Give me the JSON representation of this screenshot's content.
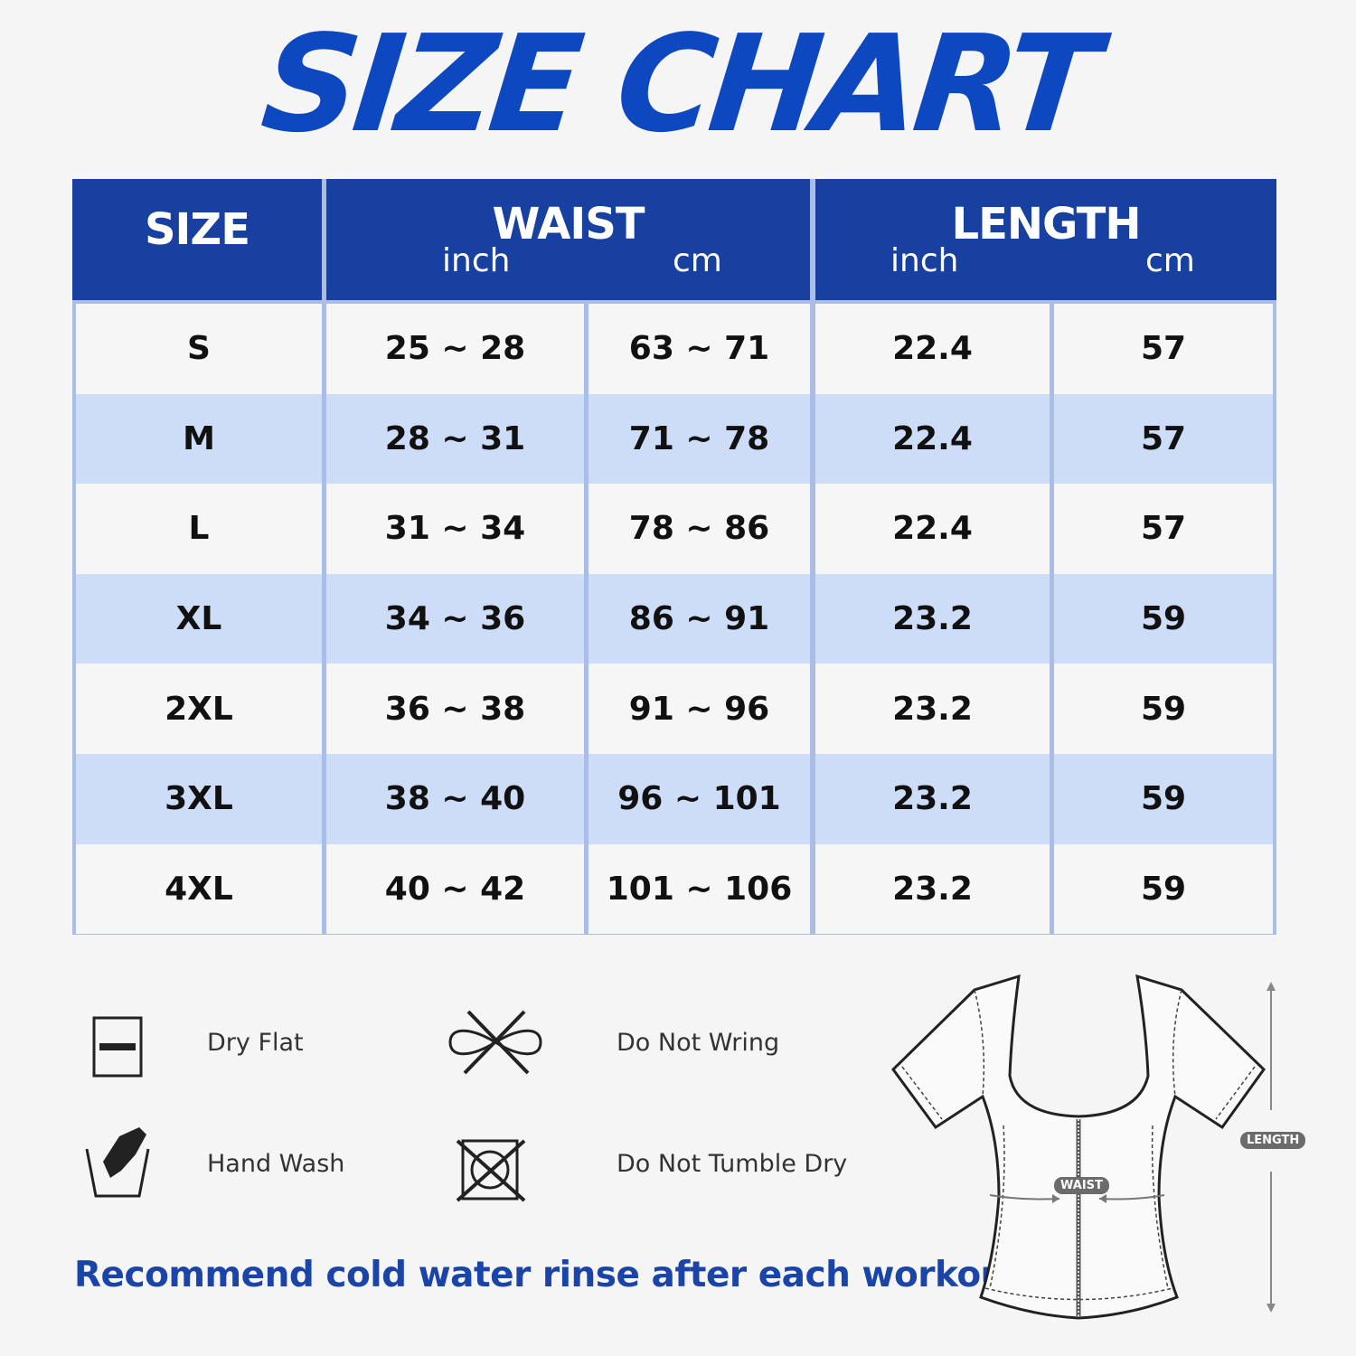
{
  "title": "SIZE CHART",
  "table": {
    "headers": {
      "size": "SIZE",
      "waist": "WAIST",
      "length": "LENGTH",
      "inch": "inch",
      "cm": "cm"
    },
    "rows": [
      {
        "size": "S",
        "waist_inch": "25 ~ 28",
        "waist_cm": "63 ~ 71",
        "length_inch": "22.4",
        "length_cm": "57"
      },
      {
        "size": "M",
        "waist_inch": "28 ~ 31",
        "waist_cm": "71 ~ 78",
        "length_inch": "22.4",
        "length_cm": "57"
      },
      {
        "size": "L",
        "waist_inch": "31 ~ 34",
        "waist_cm": "78 ~ 86",
        "length_inch": "22.4",
        "length_cm": "57"
      },
      {
        "size": "XL",
        "waist_inch": "34 ~ 36",
        "waist_cm": "86 ~ 91",
        "length_inch": "23.2",
        "length_cm": "59"
      },
      {
        "size": "2XL",
        "waist_inch": "36 ~ 38",
        "waist_cm": "91 ~ 96",
        "length_inch": "23.2",
        "length_cm": "59"
      },
      {
        "size": "3XL",
        "waist_inch": "38 ~ 40",
        "waist_cm": "96 ~ 101",
        "length_inch": "23.2",
        "length_cm": "59"
      },
      {
        "size": "4XL",
        "waist_inch": "40 ~ 42",
        "waist_cm": "101 ~ 106",
        "length_inch": "23.2",
        "length_cm": "59"
      }
    ]
  },
  "care": {
    "dry_flat": "Dry Flat",
    "do_not_wring": "Do Not Wring",
    "hand_wash": "Hand Wash",
    "do_not_tumble_dry": "Do Not Tumble Dry"
  },
  "note": "Recommend cold water rinse after each workout.",
  "diagram": {
    "waist_label": "WAIST",
    "length_label": "LENGTH"
  },
  "colors": {
    "brand_blue": "#0d48c0",
    "header_bg": "#1740a0",
    "stripe": "#cddcf7"
  }
}
